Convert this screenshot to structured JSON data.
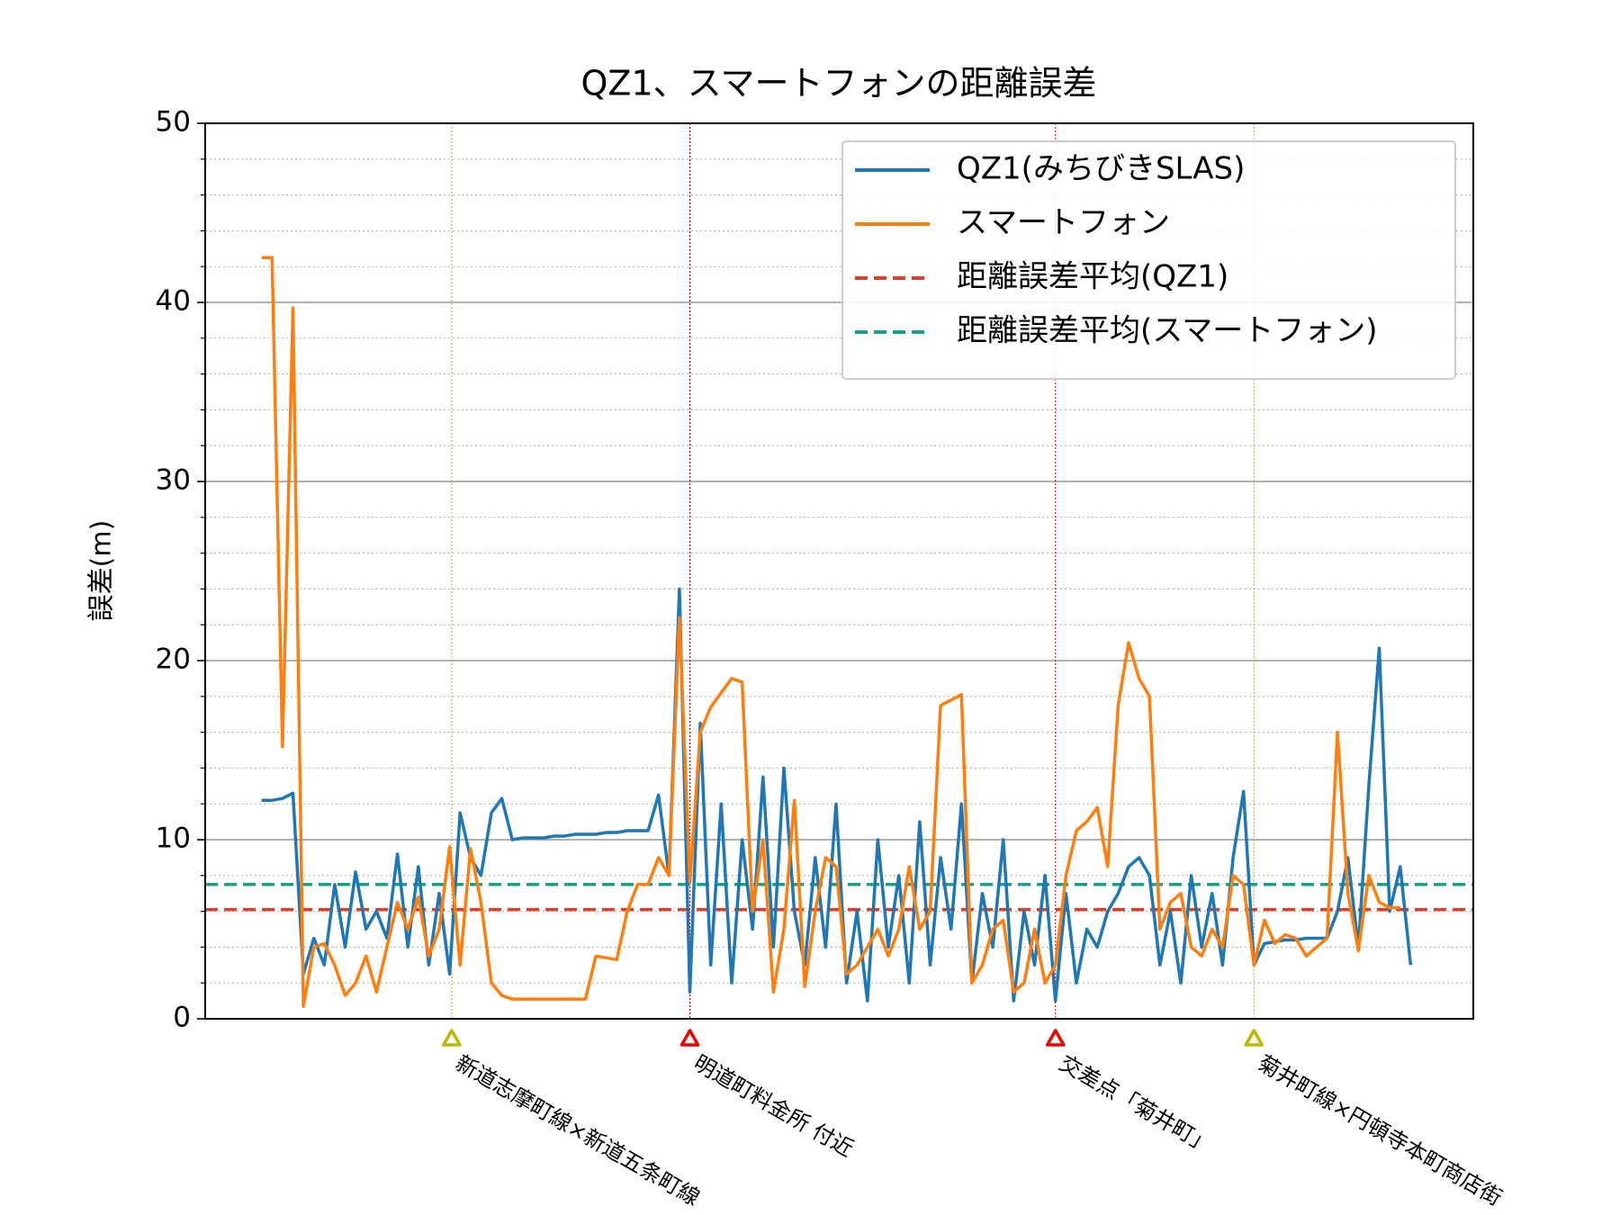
{
  "chart_data": {
    "type": "line",
    "title": "QZ1、スマートフォンの距離誤差",
    "y_label": "誤差(m)",
    "x": [
      0,
      1,
      2,
      3,
      4,
      5,
      6,
      7,
      8,
      9,
      10,
      11,
      12,
      13,
      14,
      15,
      16,
      17,
      18,
      19,
      20,
      21,
      22,
      23,
      24,
      25,
      26,
      27,
      28,
      29,
      30,
      31,
      32,
      33,
      34,
      35,
      36,
      37,
      38,
      39,
      40,
      41,
      42,
      43,
      44,
      45,
      46,
      47,
      48,
      49,
      50,
      51,
      52,
      53,
      54,
      55,
      56,
      57,
      58,
      59,
      60,
      61,
      62,
      63,
      64,
      65,
      66,
      67,
      68,
      69,
      70,
      71,
      72,
      73,
      74,
      75,
      76,
      77,
      78,
      79,
      80,
      81,
      82,
      83,
      84,
      85,
      86,
      87,
      88,
      89,
      90,
      91,
      92,
      93,
      94,
      95,
      96,
      97,
      98,
      99,
      100,
      101,
      102,
      103,
      104,
      105,
      106,
      107,
      108,
      109,
      110
    ],
    "xlim": [
      -5.4,
      116
    ],
    "ylim": [
      0,
      50
    ],
    "yticks": [
      0,
      10,
      20,
      30,
      40,
      50
    ],
    "yminorticks": [
      2,
      4,
      6,
      8,
      12,
      14,
      16,
      18,
      22,
      24,
      26,
      28,
      32,
      34,
      36,
      38,
      42,
      44,
      46,
      48
    ],
    "grid": true,
    "legend": "upper right",
    "series": [
      {
        "name": "QZ1(みちびきSLAS)",
        "color": "#1f77b4",
        "values": [
          12.2,
          12.2,
          12.3,
          12.6,
          2.5,
          4.5,
          3,
          7.5,
          4,
          8.2,
          5,
          6,
          4.5,
          9.2,
          4,
          8.5,
          3,
          7,
          2.5,
          11.5,
          9,
          8,
          11.5,
          12.3,
          10,
          10.1,
          10.1,
          10.1,
          10.2,
          10.2,
          10.3,
          10.3,
          10.3,
          10.4,
          10.4,
          10.5,
          10.5,
          10.5,
          12.5,
          8,
          24,
          1.5,
          16.5,
          3,
          12,
          2,
          10,
          5,
          13.5,
          4,
          14,
          6,
          3,
          9,
          4,
          12,
          2,
          6,
          1,
          10,
          4,
          8,
          2,
          11,
          3,
          9,
          5,
          12,
          2,
          7,
          4,
          10,
          1,
          6,
          3,
          8,
          1,
          7,
          2,
          5,
          4,
          6,
          7,
          8.5,
          9,
          8,
          3,
          6,
          2,
          8,
          4,
          7,
          3,
          9,
          12.7,
          3,
          4.2,
          4.3,
          4.4,
          4.4,
          4.5,
          4.5,
          4.5,
          6,
          9,
          4,
          13,
          20.7,
          6,
          8.5,
          3
        ]
      },
      {
        "name": "スマートフォン",
        "color": "#ff7f0e",
        "values": [
          42.5,
          42.5,
          15.2,
          39.7,
          0.7,
          4,
          4.2,
          3,
          1.3,
          2,
          3.5,
          1.5,
          4,
          6.5,
          5,
          6.8,
          3.5,
          5,
          9.6,
          3,
          9.5,
          6.5,
          2,
          1.3,
          1.1,
          1.1,
          1.1,
          1.1,
          1.1,
          1.1,
          1.1,
          1.1,
          3.5,
          3.4,
          3.3,
          6,
          7.5,
          7.5,
          9,
          8,
          22.4,
          7.6,
          16,
          17.4,
          18.2,
          19,
          18.8,
          6,
          10,
          1.5,
          5,
          12.2,
          1.8,
          6,
          9,
          8.5,
          2.5,
          3,
          4,
          5,
          3.5,
          5,
          8.5,
          5,
          6,
          17.5,
          17.8,
          18.1,
          2,
          3,
          5,
          5.5,
          1.5,
          2,
          5,
          2,
          3,
          8,
          10.5,
          11,
          11.8,
          8.5,
          17.5,
          21,
          19,
          18,
          5,
          6.5,
          7,
          4,
          3.5,
          5,
          4,
          8,
          7.5,
          3,
          5.5,
          4.2,
          4.7,
          4.5,
          3.5,
          4,
          4.5,
          16,
          7,
          3.8,
          8,
          6.5,
          6.2,
          6.2,
          null
        ]
      }
    ],
    "hlines": [
      {
        "name": "距離誤差平均(QZ1)",
        "color": "#d9412a",
        "value": 6.1
      },
      {
        "name": "距離誤差平均(スマートフォン)",
        "color": "#16a085",
        "value": 7.5
      }
    ],
    "annotations": [
      {
        "x": 18.2,
        "label": "新道志摩町線×新道五条町線",
        "color": "#b8b800"
      },
      {
        "x": 41,
        "label": "明道町料金所 付近",
        "color": "#ee0000"
      },
      {
        "x": 76,
        "label": "交差点「菊井町」",
        "color": "#ee0000"
      },
      {
        "x": 95,
        "label": "菊井町線×円頓寺本町商店街",
        "color": "#b8b800"
      }
    ]
  }
}
